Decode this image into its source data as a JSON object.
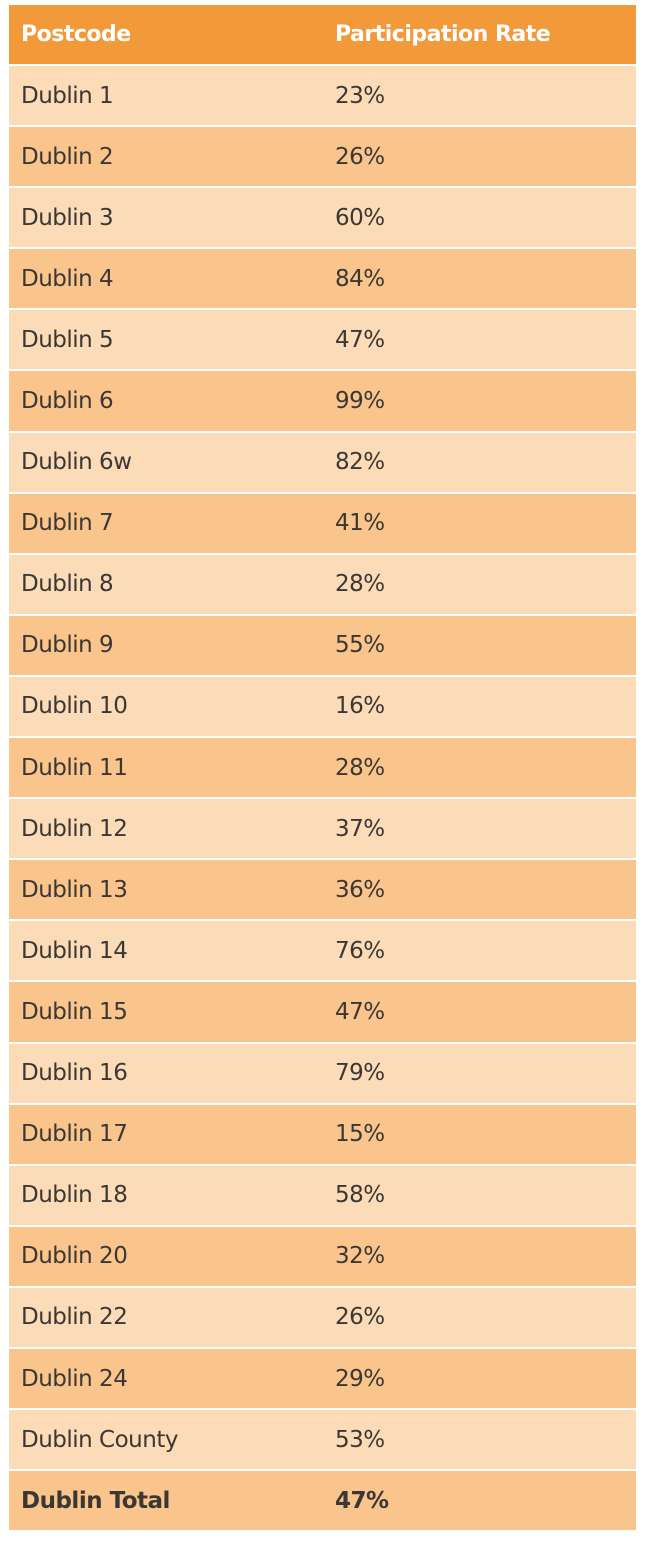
{
  "table": {
    "header": [
      "Postcode",
      "Participation Rate"
    ],
    "rows": [
      [
        "Dublin 1",
        "23%"
      ],
      [
        "Dublin 2",
        "26%"
      ],
      [
        "Dublin 3",
        "60%"
      ],
      [
        "Dublin 4",
        "84%"
      ],
      [
        "Dublin 5",
        "47%"
      ],
      [
        "Dublin 6",
        "99%"
      ],
      [
        "Dublin 6w",
        "82%"
      ],
      [
        "Dublin 7",
        "41%"
      ],
      [
        "Dublin 8",
        "28%"
      ],
      [
        "Dublin 9",
        "55%"
      ],
      [
        "Dublin 10",
        "16%"
      ],
      [
        "Dublin 11",
        "28%"
      ],
      [
        "Dublin 12",
        "37%"
      ],
      [
        "Dublin 13",
        "36%"
      ],
      [
        "Dublin 14",
        "76%"
      ],
      [
        "Dublin 15",
        "47%"
      ],
      [
        "Dublin 16",
        "79%"
      ],
      [
        "Dublin 17",
        "15%"
      ],
      [
        "Dublin 18",
        "58%"
      ],
      [
        "Dublin 20",
        "32%"
      ],
      [
        "Dublin 22",
        "26%"
      ],
      [
        "Dublin 24",
        "29%"
      ],
      [
        "Dublin County",
        "53%"
      ]
    ],
    "total": [
      "Dublin Total",
      "47%"
    ]
  }
}
